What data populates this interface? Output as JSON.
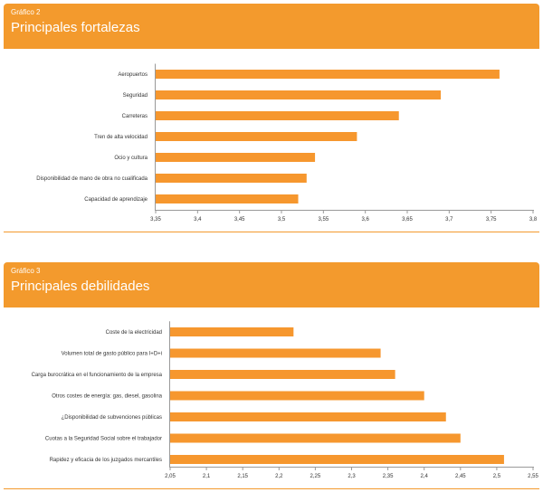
{
  "colors": {
    "accent": "#f39a2d",
    "bar": "#f6972e",
    "axis": "#999999"
  },
  "charts": [
    {
      "figure_label": "Gráfico 2",
      "title": "Principales fortalezas"
    },
    {
      "figure_label": "Gráfico 3",
      "title": "Principales debilidades"
    }
  ],
  "chart_data": [
    {
      "type": "bar",
      "orientation": "horizontal",
      "title": "Principales fortalezas",
      "categories": [
        "Aeropuertos",
        "Seguridad",
        "Carreteras",
        "Tren de alta velocidad",
        "Ocio y cultura",
        "Disponibilidad de mano de obra no cualificada",
        "Capacidad de aprendizaje"
      ],
      "values": [
        3.76,
        3.69,
        3.64,
        3.59,
        3.54,
        3.53,
        3.52
      ],
      "xlim": [
        3.35,
        3.8
      ],
      "ticks": [
        "3,35",
        "3,4",
        "3,45",
        "3,5",
        "3,55",
        "3,6",
        "3,65",
        "3,7",
        "3,75",
        "3,8"
      ],
      "grid": false
    },
    {
      "type": "bar",
      "orientation": "horizontal",
      "title": "Principales debilidades",
      "categories": [
        "Coste de la electricidad",
        "Volumen total de gasto público para I+D+i",
        "Carga burocrática en el funcionamiento de la empresa",
        "Otros costes de energía: gas, diesel, gasolina",
        "¿Disponibilidad de subvenciones públicas",
        "Cuotas a la Seguridad Social sobre el trabajador",
        "Rapidez y eficacia de los juzgados mercantiles"
      ],
      "values": [
        2.22,
        2.34,
        2.36,
        2.4,
        2.43,
        2.45,
        2.51
      ],
      "xlim": [
        2.05,
        2.55
      ],
      "ticks": [
        "2,05",
        "2,1",
        "2,15",
        "2,2",
        "2,25",
        "2,3",
        "2,35",
        "2,4",
        "2,45",
        "2,5",
        "2,55"
      ],
      "grid": false
    }
  ]
}
